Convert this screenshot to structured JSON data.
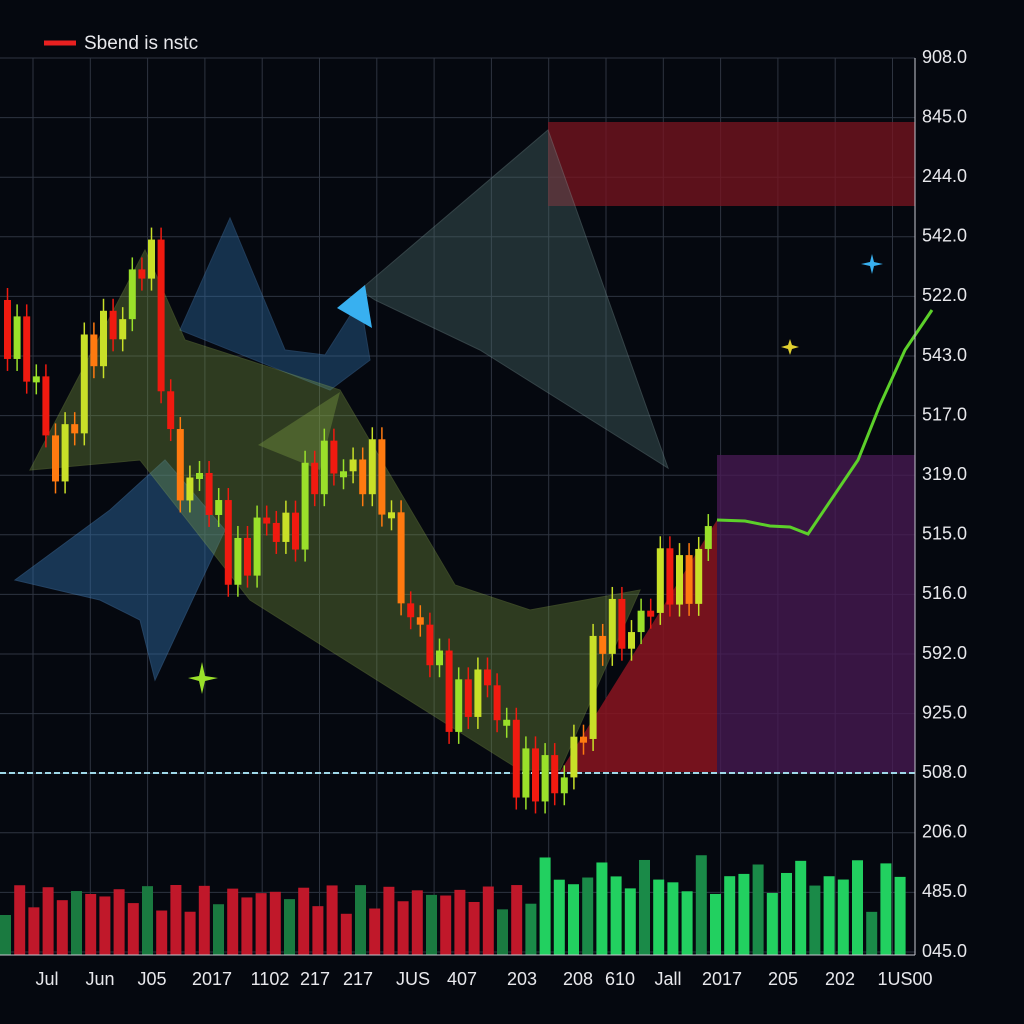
{
  "legend": "Sbend is nstc",
  "y_axis_labels": [
    "908.0",
    "845.0",
    "244.0",
    "542.0",
    "522.0",
    "543.0",
    "517.0",
    "319.0",
    "515.0",
    "516.0",
    "592.0",
    "925.0",
    "508.0",
    "206.0",
    "485.0",
    "045.0"
  ],
  "x_axis_labels": [
    "Jul",
    "Jun",
    "J05",
    "2017",
    "1102",
    "217",
    "217",
    "JUS",
    "407",
    "203",
    "208",
    "610",
    "Jall",
    "2017",
    "205",
    "202",
    "1US00"
  ]
}
